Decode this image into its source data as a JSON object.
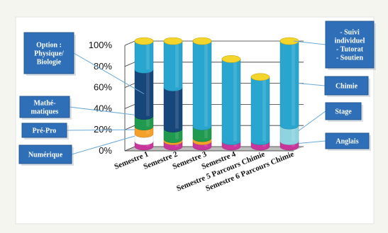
{
  "chart_data": {
    "type": "bar",
    "stacked": true,
    "three_d": true,
    "categories": [
      "Semestre 1",
      "Semestre 2",
      "Semestre 3",
      "Semestre 4",
      "Semestre 5 Parcours Chimie",
      "Semestre 6 Parcours Chimie"
    ],
    "y_ticks": [
      "0%",
      "20%",
      "40%",
      "60%",
      "80%",
      "100%"
    ],
    "ylim": [
      0,
      100
    ],
    "series": [
      {
        "name": "Anglais",
        "color": "#c8359b",
        "values": [
          5,
          5,
          5,
          5,
          5,
          5
        ]
      },
      {
        "name": "Numérique",
        "color": "#ffffff",
        "values": [
          7,
          0,
          0,
          0,
          0,
          0
        ]
      },
      {
        "name": "Pré-Pro",
        "color": "#f4a12a",
        "values": [
          7,
          2,
          3,
          0,
          0,
          0
        ]
      },
      {
        "name": "Stage",
        "color": "#8ed3e0",
        "values": [
          0,
          0,
          0,
          0,
          0,
          15
        ]
      },
      {
        "name": "Mathé-matiques",
        "color": "#1f9a4e",
        "values": [
          10,
          10,
          11,
          0,
          0,
          0
        ]
      },
      {
        "name": "Option : Physique/ Biologie",
        "color": "#17467a",
        "values": [
          44,
          39,
          0,
          0,
          0,
          0
        ]
      },
      {
        "name": "Chimie",
        "color": "#29a6cf",
        "values": [
          27,
          44,
          81,
          78,
          61,
          80
        ]
      },
      {
        "name": "- Suivi individuel - Tutorat - Soutien",
        "color": "#f3d52c",
        "values": [
          0,
          0,
          0,
          0,
          0,
          0
        ]
      }
    ],
    "legend_boxes": {
      "left": [
        {
          "key": "option",
          "lines": [
            "Option :",
            "Physique/",
            "Biologie"
          ]
        },
        {
          "key": "math",
          "lines": [
            "Mathé-",
            "matiques"
          ]
        },
        {
          "key": "prepro",
          "lines": [
            "Pré-Pro"
          ]
        },
        {
          "key": "numerique",
          "lines": [
            "Numérique"
          ]
        }
      ],
      "right": [
        {
          "key": "suivi",
          "lines": [
            "- Suivi",
            "individuel",
            "- Tutorat",
            "- Soutien"
          ]
        },
        {
          "key": "chimie",
          "lines": [
            "Chimie"
          ]
        },
        {
          "key": "stage",
          "lines": [
            "Stage"
          ]
        },
        {
          "key": "anglais",
          "lines": [
            "Anglais"
          ]
        }
      ]
    },
    "box_color": "#2f6fb8",
    "grid": true
  }
}
